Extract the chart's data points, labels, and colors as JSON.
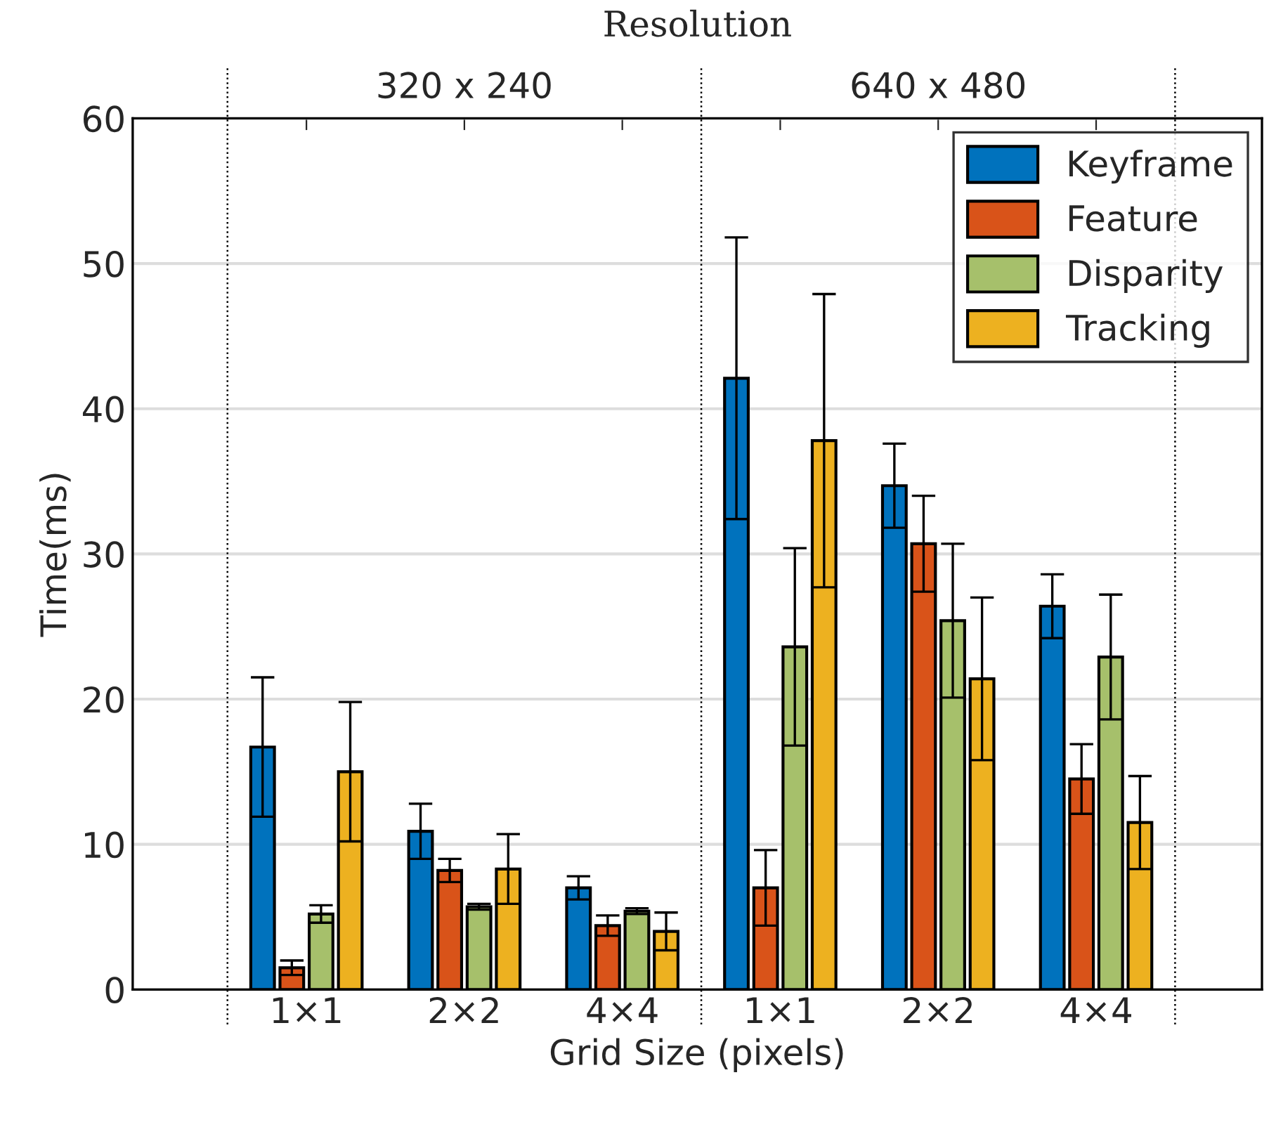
{
  "chart_data": {
    "type": "bar",
    "title": "Resolution",
    "xlabel": "Grid Size (pixels)",
    "ylabel": "Time(ms)",
    "categories": [
      "1×1",
      "2×2",
      "4×4",
      "1×1",
      "2×2",
      "4×4"
    ],
    "series": [
      {
        "name": "Keyframe",
        "color": "#0072bd",
        "values": [
          16.7,
          10.9,
          7.0,
          42.1,
          34.7,
          26.4
        ],
        "errors": [
          4.8,
          1.9,
          0.8,
          9.7,
          2.9,
          2.2
        ]
      },
      {
        "name": "Feature",
        "color": "#d95319",
        "values": [
          1.5,
          8.2,
          4.4,
          7.0,
          30.7,
          14.5
        ],
        "errors": [
          0.5,
          0.8,
          0.7,
          2.6,
          3.3,
          2.4
        ]
      },
      {
        "name": "Disparity",
        "color": "#a6c06b",
        "values": [
          5.2,
          5.7,
          5.4,
          23.6,
          25.4,
          22.9
        ],
        "errors": [
          0.6,
          0.2,
          0.2,
          6.8,
          5.3,
          4.3
        ]
      },
      {
        "name": "Tracking",
        "color": "#edb120",
        "values": [
          15.0,
          8.3,
          4.0,
          37.8,
          21.4,
          11.5
        ],
        "errors": [
          4.8,
          2.4,
          1.3,
          10.1,
          5.6,
          3.2
        ]
      }
    ],
    "ylim": [
      0,
      60
    ],
    "yticks": [
      0,
      10,
      20,
      30,
      40,
      50,
      60
    ],
    "grid": "y",
    "legend": "top right",
    "annotations": [
      "320 x 240",
      "640 x 480"
    ]
  }
}
